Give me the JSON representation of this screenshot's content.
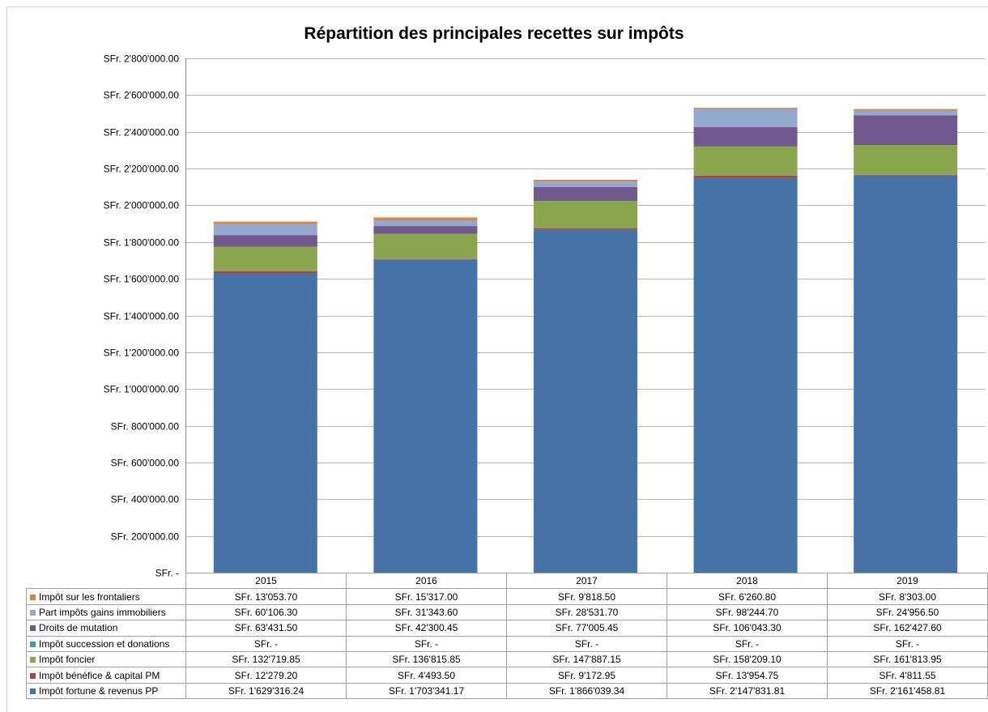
{
  "chart_data": {
    "type": "bar",
    "stacked": true,
    "title": "Répartition des principales recettes sur impôts",
    "categories": [
      "2015",
      "2016",
      "2017",
      "2018",
      "2019"
    ],
    "ylim": [
      0,
      2800000
    ],
    "y_ticks": [
      {
        "value": 0,
        "label": "SFr. -"
      },
      {
        "value": 200000,
        "label": "SFr. 200'000.00"
      },
      {
        "value": 400000,
        "label": "SFr. 400'000.00"
      },
      {
        "value": 600000,
        "label": "SFr. 600'000.00"
      },
      {
        "value": 800000,
        "label": "SFr. 800'000.00"
      },
      {
        "value": 1000000,
        "label": "SFr. 1'000'000.00"
      },
      {
        "value": 1200000,
        "label": "SFr. 1'200'000.00"
      },
      {
        "value": 1400000,
        "label": "SFr. 1'400'000.00"
      },
      {
        "value": 1600000,
        "label": "SFr. 1'600'000.00"
      },
      {
        "value": 1800000,
        "label": "SFr. 1'800'000.00"
      },
      {
        "value": 2000000,
        "label": "SFr. 2'000'000.00"
      },
      {
        "value": 2200000,
        "label": "SFr. 2'200'000.00"
      },
      {
        "value": 2400000,
        "label": "SFr. 2'400'000.00"
      },
      {
        "value": 2600000,
        "label": "SFr. 2'600'000.00"
      },
      {
        "value": 2800000,
        "label": "SFr. 2'800'000.00"
      }
    ],
    "grid": true,
    "legend": "data-table",
    "series": [
      {
        "name": "Impôt fortune & revenus PP",
        "color": "#4572A7",
        "values": [
          1629316.24,
          1703341.17,
          1866039.34,
          2147831.81,
          2161458.81
        ],
        "labels": [
          "SFr. 1'629'316.24",
          "SFr. 1'703'341.17",
          "SFr. 1'866'039.34",
          "SFr. 2'147'831.81",
          "SFr. 2'161'458.81"
        ]
      },
      {
        "name": "Impôt bénéfice & capital PM",
        "color": "#AA4643",
        "values": [
          12279.2,
          4493.5,
          9172.95,
          13954.75,
          4811.55
        ],
        "labels": [
          "SFr. 12'279.20",
          "SFr. 4'493.50",
          "SFr. 9'172.95",
          "SFr. 13'954.75",
          "SFr. 4'811.55"
        ]
      },
      {
        "name": "Impôt foncier",
        "color": "#89A54E",
        "values": [
          132719.85,
          136815.85,
          147887.15,
          158209.1,
          161813.95
        ],
        "labels": [
          "SFr. 132'719.85",
          "SFr. 136'815.85",
          "SFr. 147'887.15",
          "SFr. 158'209.10",
          "SFr. 161'813.95"
        ]
      },
      {
        "name": "Impôt succession et donations",
        "color": "#4198AF",
        "values": [
          0,
          0,
          0,
          0,
          0
        ],
        "labels": [
          "SFr. -",
          "SFr. -",
          "SFr. -",
          "SFr. -",
          "SFr. -"
        ]
      },
      {
        "name": "Droits de mutation",
        "color": "#71588F",
        "values": [
          63431.5,
          42300.45,
          77005.45,
          106043.3,
          162427.6
        ],
        "labels": [
          "SFr. 63'431.50",
          "SFr. 42'300.45",
          "SFr. 77'005.45",
          "SFr. 106'043.30",
          "SFr. 162'427.60"
        ]
      },
      {
        "name": "Part impôts gains immobiliers",
        "color": "#93A9CF",
        "values": [
          60106.3,
          31343.6,
          28531.7,
          98244.7,
          24956.5
        ],
        "labels": [
          "SFr. 60'106.30",
          "SFr. 31'343.60",
          "SFr. 28'531.70",
          "SFr. 98'244.70",
          "SFr. 24'956.50"
        ]
      },
      {
        "name": "Impôt sur les frontaliers",
        "color": "#DB843D",
        "values": [
          13053.7,
          15317.0,
          9818.5,
          6260.8,
          8303.0
        ],
        "labels": [
          "SFr. 13'053.70",
          "SFr. 15'317.00",
          "SFr. 9'818.50",
          "SFr. 6'260.80",
          "SFr. 8'303.00"
        ]
      }
    ]
  }
}
